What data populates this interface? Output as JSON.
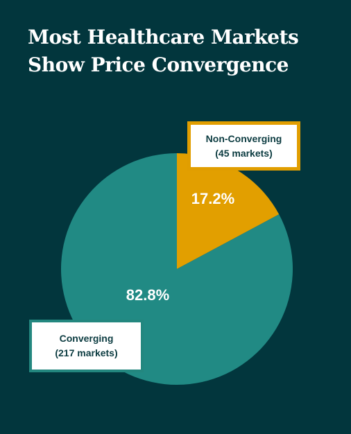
{
  "title": {
    "line1": "Most Healthcare Markets",
    "line2": "Show Price Convergence"
  },
  "colors": {
    "background": "#02363d",
    "converging": "#218a84",
    "non_converging": "#e29f00",
    "callout_text": "#0b3b40"
  },
  "chart_data": {
    "type": "pie",
    "title": "Most Healthcare Markets Show Price Convergence",
    "slices": [
      {
        "name": "Non-Converging",
        "count_label": "(45 markets)",
        "value": 45,
        "percent_label": "17.2%",
        "color": "#e29f00"
      },
      {
        "name": "Converging",
        "count_label": "(217 markets)",
        "value": 217,
        "percent_label": "82.8%",
        "color": "#218a84"
      }
    ]
  }
}
